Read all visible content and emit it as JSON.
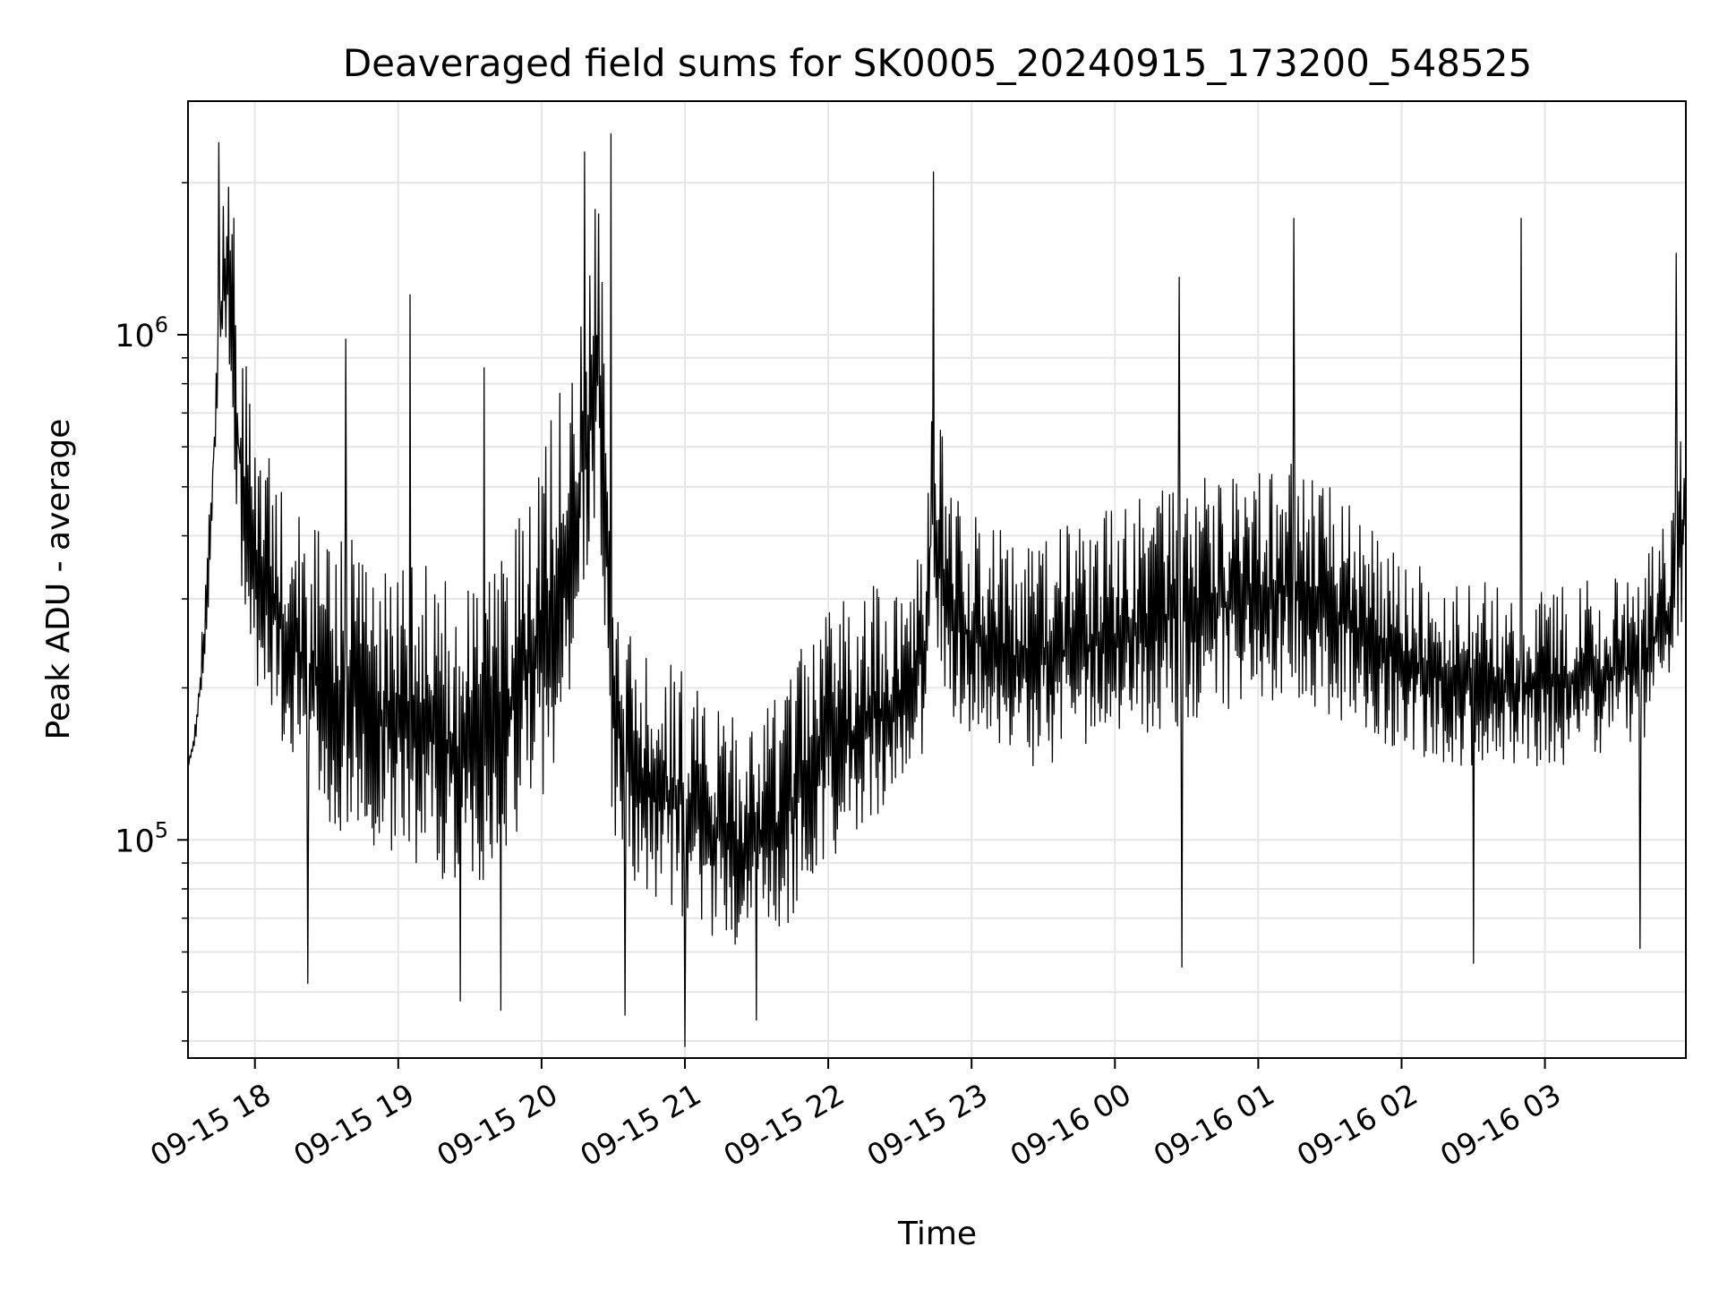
{
  "chart_data": {
    "type": "line",
    "title": "Deaveraged field sums for SK0005_20240915_173200_548525",
    "xlabel": "Time",
    "ylabel": "Peak ADU - average",
    "y_scale": "log",
    "ylim": [
      37000,
      2900000
    ],
    "xlim": [
      "2024-09-15T17:32:00",
      "2024-09-16T03:59:00"
    ],
    "grid": true,
    "x_ticks": [
      "2024-09-15T18:00:00",
      "2024-09-15T19:00:00",
      "2024-09-15T20:00:00",
      "2024-09-15T21:00:00",
      "2024-09-15T22:00:00",
      "2024-09-15T23:00:00",
      "2024-09-16T00:00:00",
      "2024-09-16T01:00:00",
      "2024-09-16T02:00:00",
      "2024-09-16T03:00:00"
    ],
    "x_tick_labels": [
      "09-15 18",
      "09-15 19",
      "09-15 20",
      "09-15 21",
      "09-15 22",
      "09-15 23",
      "09-16 00",
      "09-16 01",
      "09-16 02",
      "09-16 03"
    ],
    "y_ticks": [
      100000,
      1000000
    ],
    "y_tick_labels": [
      {
        "base": "10",
        "exp": "5"
      },
      {
        "base": "10",
        "exp": "6"
      }
    ],
    "series": [
      {
        "color": "#000000",
        "x": [
          "2024-09-15T17:32:00",
          "2024-09-15T17:35:00",
          "2024-09-15T17:40:00",
          "2024-09-15T17:44:00",
          "2024-09-15T17:48:00",
          "2024-09-15T17:52:00",
          "2024-09-15T17:56:00",
          "2024-09-15T18:00:00",
          "2024-09-15T18:05:00",
          "2024-09-15T18:10:00",
          "2024-09-15T18:15:00",
          "2024-09-15T18:20:00",
          "2024-09-15T18:25:00",
          "2024-09-15T18:30:00",
          "2024-09-15T18:40:00",
          "2024-09-15T18:50:00",
          "2024-09-15T19:00:00",
          "2024-09-15T19:10:00",
          "2024-09-15T19:20:00",
          "2024-09-15T19:30:00",
          "2024-09-15T19:40:00",
          "2024-09-15T19:50:00",
          "2024-09-15T20:00:00",
          "2024-09-15T20:07:00",
          "2024-09-15T20:12:00",
          "2024-09-15T20:18:00",
          "2024-09-15T20:24:00",
          "2024-09-15T20:30:00",
          "2024-09-15T20:40:00",
          "2024-09-15T20:50:00",
          "2024-09-15T21:00:00",
          "2024-09-15T21:10:00",
          "2024-09-15T21:20:00",
          "2024-09-15T21:30:00",
          "2024-09-15T21:40:00",
          "2024-09-15T21:50:00",
          "2024-09-15T22:00:00",
          "2024-09-15T22:10:00",
          "2024-09-15T22:20:00",
          "2024-09-15T22:30:00",
          "2024-09-15T22:40:00",
          "2024-09-15T22:44:00",
          "2024-09-15T22:50:00",
          "2024-09-15T23:00:00",
          "2024-09-15T23:10:00",
          "2024-09-15T23:20:00",
          "2024-09-15T23:30:00",
          "2024-09-15T23:40:00",
          "2024-09-15T23:50:00",
          "2024-09-16T00:00:00",
          "2024-09-16T00:10:00",
          "2024-09-16T00:20:00",
          "2024-09-16T00:30:00",
          "2024-09-16T00:40:00",
          "2024-09-16T00:50:00",
          "2024-09-16T01:00:00",
          "2024-09-16T01:10:00",
          "2024-09-16T01:20:00",
          "2024-09-16T01:30:00",
          "2024-09-16T01:40:00",
          "2024-09-16T01:50:00",
          "2024-09-16T02:00:00",
          "2024-09-16T02:10:00",
          "2024-09-16T02:20:00",
          "2024-09-16T02:30:00",
          "2024-09-16T02:40:00",
          "2024-09-16T02:50:00",
          "2024-09-16T03:00:00",
          "2024-09-16T03:10:00",
          "2024-09-16T03:20:00",
          "2024-09-16T03:30:00",
          "2024-09-16T03:40:00",
          "2024-09-16T03:50:00",
          "2024-09-16T03:59:00"
        ],
        "upper": [
          140000,
          170000,
          350000,
          1100000,
          2400000,
          1300000,
          900000,
          700000,
          600000,
          500000,
          480000,
          450000,
          440000,
          420000,
          400000,
          380000,
          360000,
          350000,
          340000,
          330000,
          350000,
          450000,
          600000,
          800000,
          1000000,
          1300000,
          2300000,
          400000,
          250000,
          230000,
          220000,
          200000,
          180000,
          170000,
          200000,
          250000,
          300000,
          300000,
          320000,
          330000,
          400000,
          1000000,
          500000,
          450000,
          420000,
          400000,
          400000,
          420000,
          440000,
          460000,
          480000,
          500000,
          520000,
          520000,
          530000,
          550000,
          560000,
          550000,
          500000,
          450000,
          400000,
          380000,
          350000,
          330000,
          330000,
          320000,
          320000,
          320000,
          320000,
          330000,
          340000,
          350000,
          420000,
          700000
        ],
        "lower": [
          140000,
          150000,
          250000,
          600000,
          1000000,
          400000,
          250000,
          200000,
          180000,
          160000,
          140000,
          130000,
          120000,
          110000,
          100000,
          95000,
          90000,
          85000,
          80000,
          80000,
          85000,
          100000,
          120000,
          150000,
          200000,
          300000,
          400000,
          100000,
          80000,
          75000,
          70000,
          65000,
          62000,
          60000,
          65000,
          75000,
          90000,
          100000,
          110000,
          120000,
          150000,
          250000,
          180000,
          160000,
          150000,
          140000,
          140000,
          145000,
          150000,
          155000,
          160000,
          165000,
          170000,
          175000,
          180000,
          185000,
          190000,
          185000,
          175000,
          165000,
          155000,
          150000,
          145000,
          140000,
          140000,
          140000,
          140000,
          140000,
          140000,
          145000,
          150000,
          155000,
          180000,
          300000
        ],
        "peaks": [
          {
            "x": "2024-09-15T17:45:00",
            "y": 2400000
          },
          {
            "x": "2024-09-15T17:51:00",
            "y": 1700000
          },
          {
            "x": "2024-09-15T18:38:00",
            "y": 980000
          },
          {
            "x": "2024-09-15T19:05:00",
            "y": 1200000
          },
          {
            "x": "2024-09-15T19:36:00",
            "y": 860000
          },
          {
            "x": "2024-09-15T20:18:00",
            "y": 2300000
          },
          {
            "x": "2024-09-15T20:29:00",
            "y": 2500000
          },
          {
            "x": "2024-09-15T22:44:00",
            "y": 2100000
          },
          {
            "x": "2024-09-16T00:27:00",
            "y": 1300000
          },
          {
            "x": "2024-09-16T01:15:00",
            "y": 1700000
          },
          {
            "x": "2024-09-16T02:50:00",
            "y": 1700000
          },
          {
            "x": "2024-09-16T03:55:00",
            "y": 1450000
          }
        ],
        "dips": [
          {
            "x": "2024-09-15T18:22:00",
            "y": 52000
          },
          {
            "x": "2024-09-15T19:26:00",
            "y": 48000
          },
          {
            "x": "2024-09-15T19:43:00",
            "y": 46000
          },
          {
            "x": "2024-09-15T20:35:00",
            "y": 45000
          },
          {
            "x": "2024-09-15T21:00:00",
            "y": 39000
          },
          {
            "x": "2024-09-15T21:30:00",
            "y": 44000
          },
          {
            "x": "2024-09-16T00:28:00",
            "y": 56000
          },
          {
            "x": "2024-09-16T02:30:00",
            "y": 57000
          },
          {
            "x": "2024-09-16T03:40:00",
            "y": 61000
          }
        ],
        "label": ""
      }
    ]
  }
}
